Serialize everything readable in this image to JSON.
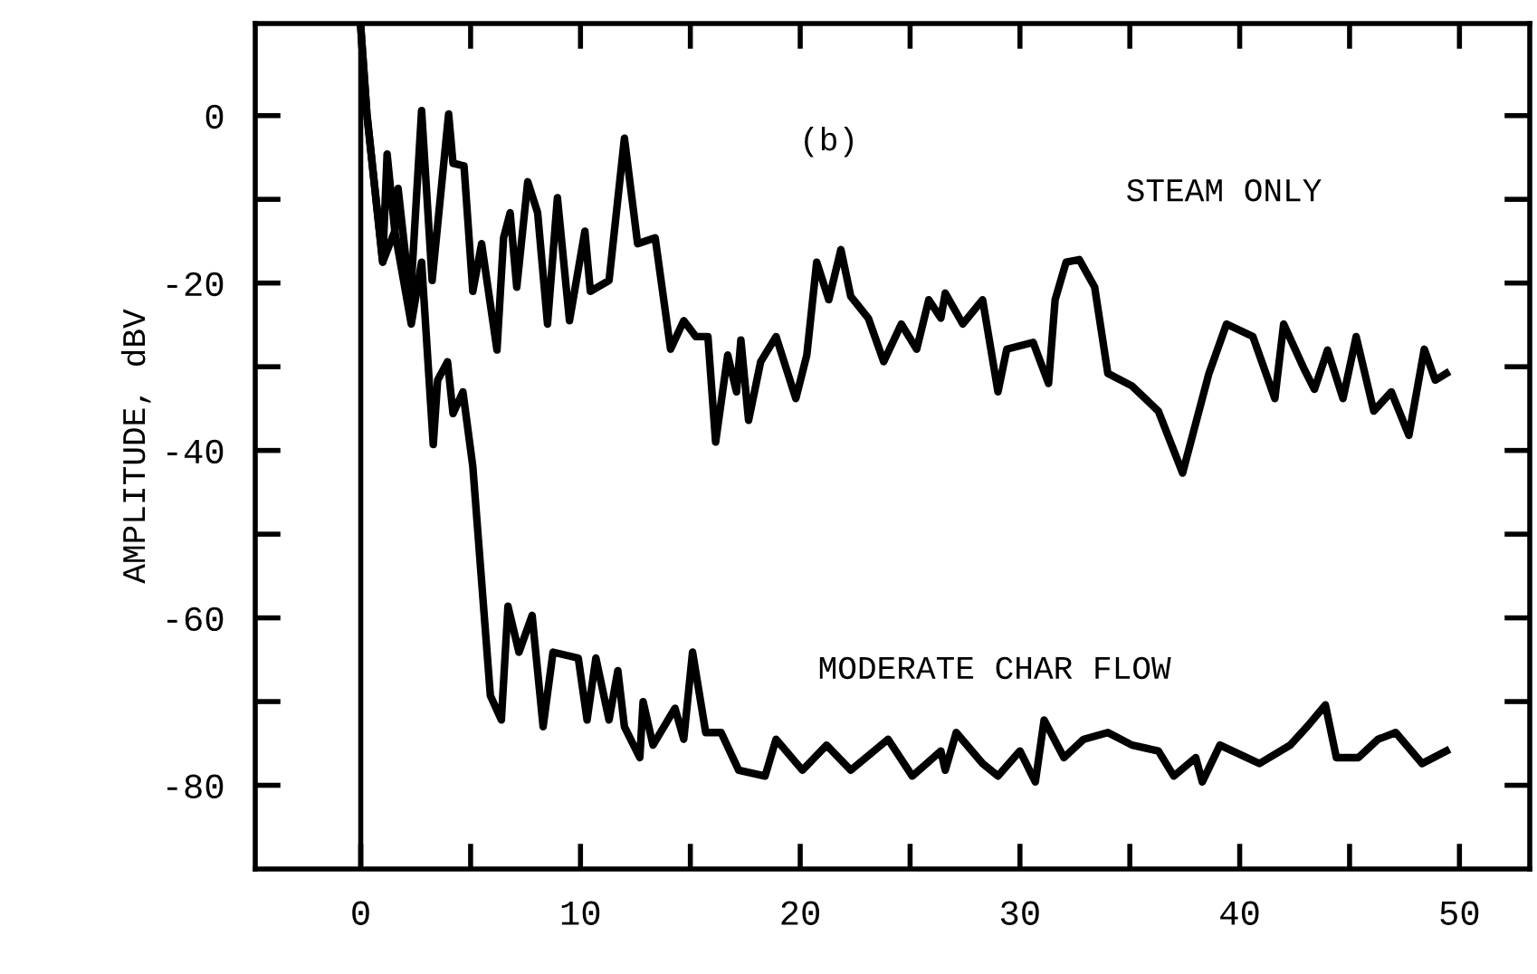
{
  "chart_data": {
    "type": "line",
    "ylabel": "AMPLITUDE, dBV",
    "annotations": [
      "(b)"
    ],
    "xlim": [
      -4.8,
      53.2
    ],
    "ylim": [
      -90,
      11
    ],
    "xticks": [
      0,
      {
        "value": 5,
        "label": null
      },
      10,
      {
        "value": 15,
        "label": null
      },
      20,
      {
        "value": 25,
        "label": null
      },
      30,
      {
        "value": 35,
        "label": null
      },
      40,
      {
        "value": 45,
        "label": null
      },
      50
    ],
    "yticks": [
      -80,
      {
        "value": -70,
        "label": null
      },
      -60,
      {
        "value": -50,
        "label": null
      },
      -40,
      {
        "value": -30,
        "label": null
      },
      -20,
      {
        "value": -10,
        "label": null
      },
      0
    ],
    "ref_lines": [
      {
        "axis": "x",
        "value": 0,
        "label": null,
        "color": "#000000"
      }
    ],
    "grid": false,
    "legend": false,
    "marker": "none",
    "line_style": "solid",
    "series": [
      {
        "name": "STEAM ONLY",
        "color": "#000000",
        "x": [
          0,
          0.28,
          1.0,
          1.2,
          1.55,
          1.7,
          2.26,
          2.77,
          3.25,
          4.0,
          4.2,
          4.7,
          5.1,
          5.5,
          6.2,
          6.5,
          6.8,
          7.1,
          7.6,
          8.05,
          8.5,
          8.95,
          9.5,
          10.2,
          10.45,
          11.3,
          12.0,
          12.6,
          13.4,
          14.1,
          14.7,
          15.25,
          15.8,
          16.15,
          16.7,
          17.1,
          17.3,
          17.65,
          18.2,
          18.9,
          19.8,
          20.3,
          20.75,
          21.3,
          21.85,
          22.3,
          23.1,
          23.8,
          24.6,
          25.3,
          25.85,
          26.4,
          26.6,
          27.4,
          28.3,
          29.0,
          29.4,
          30.6,
          31.3,
          31.6,
          32.1,
          32.7,
          33.4,
          34.0,
          35.1,
          36.3,
          37.4,
          38.6,
          39.4,
          40.6,
          41.6,
          42.0,
          42.9,
          43.4,
          44.0,
          44.7,
          45.3,
          46.1,
          46.9,
          47.7,
          48.4,
          48.9,
          49.4
        ],
        "values": [
          10.6,
          0.2,
          -17.5,
          -4.6,
          -13.8,
          -8.7,
          -22,
          0.6,
          -19.7,
          0.2,
          -5.7,
          -6,
          -21,
          -15.3,
          -28,
          -14.6,
          -11.6,
          -20.5,
          -7.9,
          -11.6,
          -24.9,
          -9.8,
          -24.5,
          -13.8,
          -21,
          -19.7,
          -2.7,
          -15.3,
          -14.6,
          -27.9,
          -24.5,
          -26.4,
          -26.4,
          -39,
          -28.6,
          -33,
          -26.8,
          -36.4,
          -29.4,
          -26.4,
          -33.8,
          -28.6,
          -17.5,
          -22,
          -16,
          -21.6,
          -24.2,
          -29.4,
          -24.9,
          -27.9,
          -22,
          -24.2,
          -21.2,
          -24.9,
          -22,
          -33,
          -27.9,
          -27.1,
          -32,
          -22,
          -17.5,
          -17.2,
          -20.5,
          -30.8,
          -32.3,
          -35.3,
          -42.7,
          -30.8,
          -24.9,
          -26.4,
          -33.8,
          -24.9,
          -30.1,
          -32.7,
          -28,
          -33.8,
          -26.4,
          -35.3,
          -33,
          -38.2,
          -27.9,
          -31.6,
          -30.8
        ]
      },
      {
        "name": "MODERATE CHAR FLOW",
        "color": "#000000",
        "x": [
          0,
          0.28,
          1.0,
          1.55,
          2.3,
          2.77,
          3.3,
          3.5,
          3.95,
          4.2,
          4.65,
          5.1,
          5.9,
          6.4,
          6.7,
          7.2,
          7.8,
          8.3,
          8.75,
          9.9,
          10.3,
          10.7,
          11.3,
          11.7,
          12.0,
          12.7,
          12.85,
          13.3,
          14.3,
          14.7,
          15.1,
          15.7,
          16.4,
          17.2,
          18.4,
          18.9,
          20.1,
          21.2,
          22.3,
          24.0,
          25.1,
          26.4,
          26.6,
          27.1,
          28.3,
          29.0,
          30.0,
          30.7,
          31.1,
          32.0,
          32.9,
          34.0,
          35.1,
          36.3,
          37.0,
          38.0,
          38.3,
          39.1,
          40.9,
          42.3,
          43.1,
          43.9,
          44.4,
          45.4,
          46.3,
          47.1,
          48.3,
          49.4
        ],
        "values": [
          10.6,
          0.2,
          -17.5,
          -13.8,
          -24.9,
          -17.5,
          -39.3,
          -31.6,
          -29.4,
          -35.6,
          -33,
          -41.9,
          -69.3,
          -72.2,
          -58.6,
          -64.1,
          -59.7,
          -73,
          -64.1,
          -64.8,
          -72.2,
          -64.8,
          -72.2,
          -66.3,
          -73,
          -76.7,
          -70,
          -75.2,
          -70.8,
          -74.5,
          -64.1,
          -73.7,
          -73.7,
          -78.2,
          -78.9,
          -74.5,
          -78.2,
          -75.2,
          -78.2,
          -74.5,
          -78.9,
          -75.9,
          -78.2,
          -73.7,
          -77.4,
          -78.9,
          -75.9,
          -79.6,
          -72.2,
          -76.7,
          -74.5,
          -73.7,
          -75.2,
          -75.9,
          -78.9,
          -76.7,
          -79.6,
          -75.2,
          -77.4,
          -75.2,
          -72.9,
          -70.4,
          -76.7,
          -76.7,
          -74.5,
          -73.7,
          -77.4,
          -75.9
        ]
      }
    ]
  }
}
